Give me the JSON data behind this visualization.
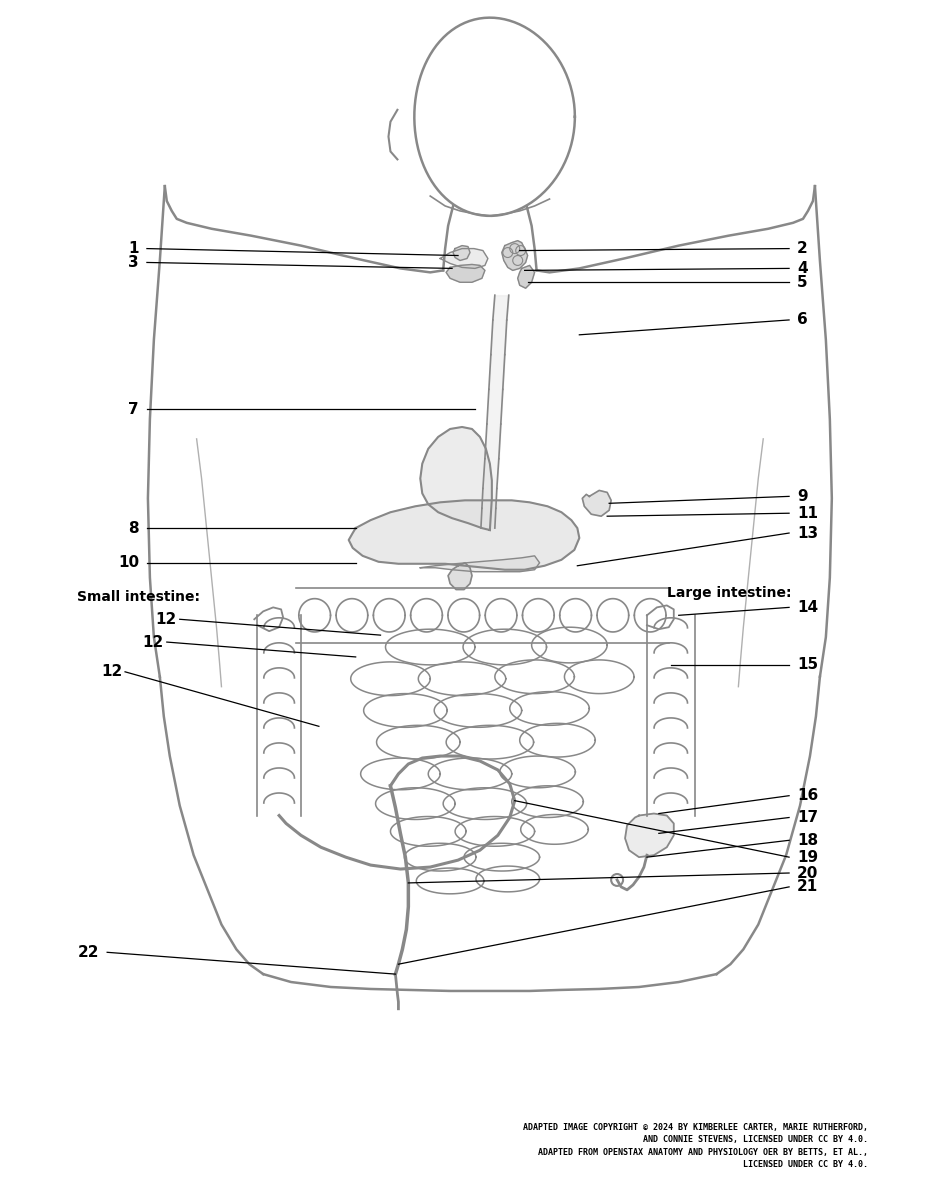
{
  "figure_width": 9.36,
  "figure_height": 11.84,
  "bg_color": "#ffffff",
  "lc": "#000000",
  "gc": "#888888",
  "copyright_text": "ADAPTED IMAGE COPYRIGHT © 2024 BY KIMBERLEE CARTER, MARIE RUTHERFORD,\nAND CONNIE STEVENS, LICENSED UNDER CC BY 4.0.\nADAPTED FROM OPENSTAX ANATOMY AND PHYSIOLOGY OER BY BETTS, ET AL.,\nLICENSED UNDER CC BY 4.0.",
  "label_fs": 11
}
